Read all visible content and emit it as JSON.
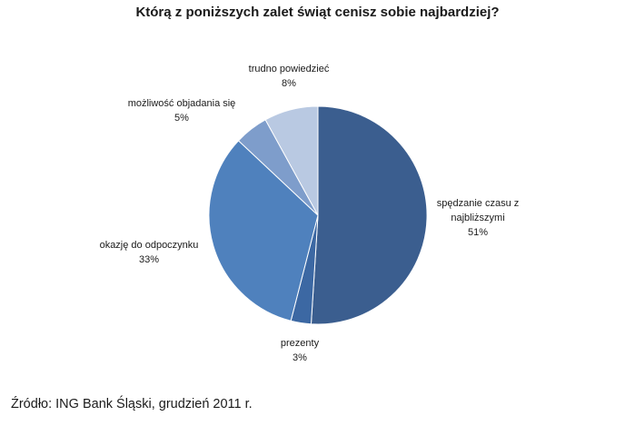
{
  "chart_data": {
    "type": "pie",
    "title": "Którą z poniższych zalet świąt cenisz sobie najbardziej?",
    "slices": [
      {
        "label_lines": [
          "spędzanie czasu z",
          "najbliższymi"
        ],
        "value": 51,
        "value_label": "51%",
        "color": "#3B5E8F"
      },
      {
        "label_lines": [
          "prezenty"
        ],
        "value": 3,
        "value_label": "3%",
        "color": "#3C68A3"
      },
      {
        "label_lines": [
          "okazję do odpoczynku"
        ],
        "value": 33,
        "value_label": "33%",
        "color": "#4F81BD"
      },
      {
        "label_lines": [
          "możliwość objadania się"
        ],
        "value": 5,
        "value_label": "5%",
        "color": "#7E9DCB"
      },
      {
        "label_lines": [
          "trudno powiedzieć"
        ],
        "value": 8,
        "value_label": "8%",
        "color": "#B9C9E2"
      }
    ],
    "start_angle_deg": 0,
    "direction": "clockwise",
    "legend": "none"
  },
  "source": "Źródło: ING Bank Śląski, grudzień 2011 r."
}
